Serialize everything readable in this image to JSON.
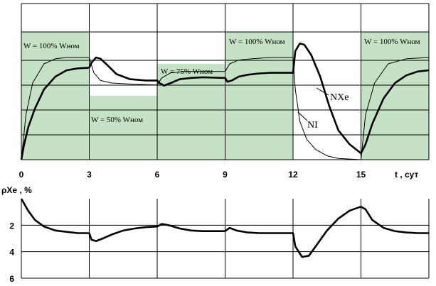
{
  "chart_data": [
    {
      "type": "line",
      "xlabel": "t , сут",
      "xlim": [
        0,
        18
      ],
      "x_ticks": [
        "0",
        "3",
        "6",
        "9",
        "12",
        "15"
      ],
      "grid": true,
      "power_profile": {
        "x": [
          0,
          3,
          3,
          6,
          6,
          9,
          9,
          12,
          12,
          15,
          15,
          18
        ],
        "y": [
          100,
          100,
          50,
          50,
          75,
          75,
          100,
          100,
          0,
          0,
          100,
          100
        ]
      },
      "power_labels": [
        {
          "text": "W = 100% Wном"
        },
        {
          "text": "W =  50% Wном"
        },
        {
          "text": "W =  75% Wном"
        },
        {
          "text": "W = 100% Wном"
        },
        {
          "text": "W = 100% Wном"
        }
      ],
      "series": [
        {
          "name": "NXe",
          "x": [
            0,
            0.1,
            0.3,
            0.6,
            1.0,
            1.5,
            2.0,
            2.5,
            3.0,
            3.1,
            3.3,
            3.5,
            3.8,
            4.2,
            4.8,
            5.5,
            6.0,
            6.1,
            6.3,
            6.6,
            7.0,
            7.5,
            8.0,
            9.0,
            9.1,
            9.3,
            9.6,
            10.0,
            10.5,
            11.0,
            12.0,
            12.1,
            12.3,
            12.5,
            12.8,
            13.2,
            13.6,
            14.0,
            14.5,
            15.0,
            15.2,
            15.5,
            16.0,
            16.5,
            17.0,
            17.5,
            18.0
          ],
          "y": [
            0,
            10,
            25,
            40,
            55,
            65,
            70,
            71.5,
            72,
            76,
            80,
            79,
            74,
            67,
            63,
            62,
            62,
            60,
            58,
            60,
            63,
            64,
            64.5,
            64,
            61,
            62,
            65,
            66.5,
            67.5,
            68,
            68,
            85,
            91,
            90,
            82,
            65,
            42,
            23,
            12,
            5,
            12,
            28,
            48,
            60,
            66,
            69,
            70
          ]
        },
        {
          "name": "NI",
          "x": [
            0,
            0.2,
            0.5,
            1.0,
            1.5,
            2.0,
            3.0,
            3.2,
            3.5,
            4.0,
            5.0,
            6.0,
            6.2,
            6.6,
            7.2,
            8.0,
            9.0,
            9.2,
            9.6,
            10.2,
            11.0,
            12.0,
            12.1,
            12.3,
            12.6,
            13.0,
            13.5,
            14.0,
            15.0,
            15.2,
            15.6,
            16.2,
            17.0,
            18.0
          ],
          "y": [
            0,
            35,
            60,
            75,
            79,
            80,
            80,
            68,
            62,
            60,
            59,
            58.5,
            64,
            68,
            69,
            69,
            69,
            75,
            78,
            79,
            80,
            80,
            55,
            30,
            16,
            8,
            3,
            1,
            0,
            35,
            60,
            75,
            79,
            80
          ]
        }
      ],
      "annotations": [
        {
          "text": "NXe",
          "series": "NXe",
          "at": [
            13.5,
            42
          ]
        },
        {
          "text": "NI",
          "series": "NI",
          "at": [
            12.5,
            30
          ]
        }
      ]
    },
    {
      "type": "line",
      "ylabel": "ρXe , %",
      "ylim": [
        6,
        0
      ],
      "y_ticks": [
        "2",
        "4",
        "6"
      ],
      "xlim": [
        0,
        18
      ],
      "grid": true,
      "series": [
        {
          "name": "ρXe",
          "x": [
            0,
            0.3,
            0.6,
            1.0,
            1.5,
            2.0,
            2.5,
            3.0,
            3.1,
            3.3,
            3.6,
            4.0,
            4.5,
            5.0,
            5.5,
            6.0,
            6.2,
            6.5,
            7.0,
            7.5,
            8.0,
            8.5,
            9.0,
            9.2,
            9.5,
            10.0,
            10.5,
            11.0,
            12.0,
            12.1,
            12.4,
            12.7,
            13.0,
            13.5,
            14.0,
            14.5,
            15.0,
            15.2,
            15.5,
            16.0,
            16.5,
            17.0,
            17.5,
            18.0
          ],
          "y": [
            0,
            0.9,
            1.6,
            2.1,
            2.4,
            2.5,
            2.6,
            2.6,
            3.1,
            3.2,
            3.0,
            2.7,
            2.4,
            2.25,
            2.15,
            2.1,
            1.9,
            2.0,
            2.25,
            2.4,
            2.45,
            2.45,
            2.45,
            2.2,
            2.4,
            2.55,
            2.6,
            2.6,
            2.6,
            3.6,
            4.4,
            4.3,
            3.6,
            2.4,
            1.5,
            0.9,
            0.6,
            0.8,
            1.6,
            2.2,
            2.45,
            2.55,
            2.6,
            2.6
          ]
        }
      ]
    }
  ]
}
